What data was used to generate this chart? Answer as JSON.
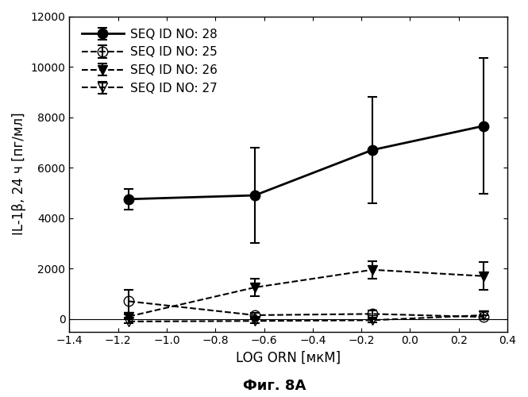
{
  "title": "",
  "xlabel": "LOG ORN [мкМ]",
  "ylabel": "IL-1β, 24 ч [пг/мл]",
  "fig_label": "Фиг. 8A",
  "xlim": [
    -1.4,
    0.4
  ],
  "ylim": [
    -500,
    12000
  ],
  "yticks": [
    0,
    2000,
    4000,
    6000,
    8000,
    10000,
    12000
  ],
  "xticks": [
    -1.4,
    -1.2,
    -1.0,
    -0.8,
    -0.6,
    -0.4,
    -0.2,
    0.0,
    0.2,
    0.4
  ],
  "series": [
    {
      "label": "SEQ ID NO: 28",
      "x": [
        -1.155,
        -0.638,
        -0.155,
        0.301
      ],
      "y": [
        4750,
        4900,
        6700,
        7650
      ],
      "yerr": [
        400,
        1900,
        2100,
        2700
      ],
      "linestyle": "-",
      "marker": "o",
      "markerfacecolor": "black",
      "markeredgecolor": "black",
      "color": "black",
      "linewidth": 2.0,
      "markersize": 9,
      "fillstyle": "full"
    },
    {
      "label": "SEQ ID NO: 25",
      "x": [
        -1.155,
        -0.638,
        -0.155,
        0.301
      ],
      "y": [
        700,
        150,
        200,
        80
      ],
      "yerr": [
        450,
        100,
        150,
        80
      ],
      "linestyle": "--",
      "marker": "o",
      "markerfacecolor": "white",
      "markeredgecolor": "black",
      "color": "black",
      "linewidth": 1.5,
      "markersize": 9,
      "fillstyle": "none"
    },
    {
      "label": "SEQ ID NO: 26",
      "x": [
        -1.155,
        -0.638,
        -0.155,
        0.301
      ],
      "y": [
        100,
        1250,
        1950,
        1700
      ],
      "yerr": [
        80,
        350,
        350,
        550
      ],
      "linestyle": "--",
      "marker": "v",
      "markerfacecolor": "black",
      "markeredgecolor": "black",
      "color": "black",
      "linewidth": 1.5,
      "markersize": 9,
      "fillstyle": "full"
    },
    {
      "label": "SEQ ID NO: 27",
      "x": [
        -1.155,
        -0.638,
        -0.155,
        0.301
      ],
      "y": [
        -100,
        -80,
        -50,
        150
      ],
      "yerr": [
        80,
        80,
        80,
        150
      ],
      "linestyle": "--",
      "marker": "v",
      "markerfacecolor": "white",
      "markeredgecolor": "black",
      "color": "black",
      "linewidth": 1.5,
      "markersize": 9,
      "fillstyle": "none"
    }
  ],
  "background_color": "white",
  "legend_loc": "upper left",
  "legend_fontsize": 11
}
